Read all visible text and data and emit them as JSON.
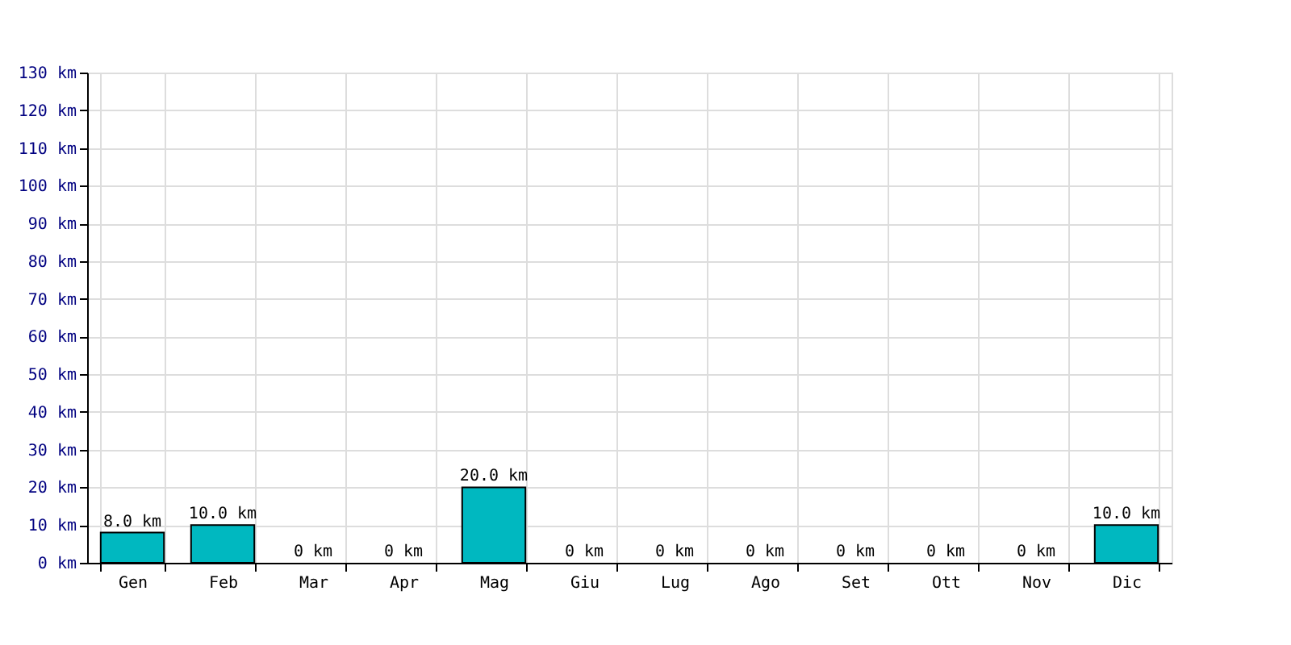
{
  "chart_data": {
    "type": "bar",
    "categories": [
      "Gen",
      "Feb",
      "Mar",
      "Apr",
      "Mag",
      "Giu",
      "Lug",
      "Ago",
      "Set",
      "Ott",
      "Nov",
      "Dic"
    ],
    "values": [
      8,
      10,
      0,
      0,
      20,
      0,
      0,
      0,
      0,
      0,
      0,
      10
    ],
    "value_labels": [
      "8.0 km",
      "10.0 km",
      "0 km",
      "0 km",
      "20.0 km",
      "0 km",
      "0 km",
      "0 km",
      "0 km",
      "0 km",
      "0 km",
      "10.0 km"
    ],
    "color": "#00b8c0",
    "ylim": [
      0,
      130
    ],
    "yticks": [
      {
        "value": 0,
        "label": "0 km"
      },
      {
        "value": 10,
        "label": "10 km"
      },
      {
        "value": 20,
        "label": "20 km"
      },
      {
        "value": 30,
        "label": "30 km"
      },
      {
        "value": 40,
        "label": "40 km"
      },
      {
        "value": 50,
        "label": "50 km"
      },
      {
        "value": 60,
        "label": "60 km"
      },
      {
        "value": 70,
        "label": "70 km"
      },
      {
        "value": 80,
        "label": "80 km"
      },
      {
        "value": 90,
        "label": "90 km"
      },
      {
        "value": 100,
        "label": "100 km"
      },
      {
        "value": 110,
        "label": "110 km"
      },
      {
        "value": 120,
        "label": "120 km"
      },
      {
        "value": 130,
        "label": "130 km"
      }
    ],
    "grid": true
  }
}
